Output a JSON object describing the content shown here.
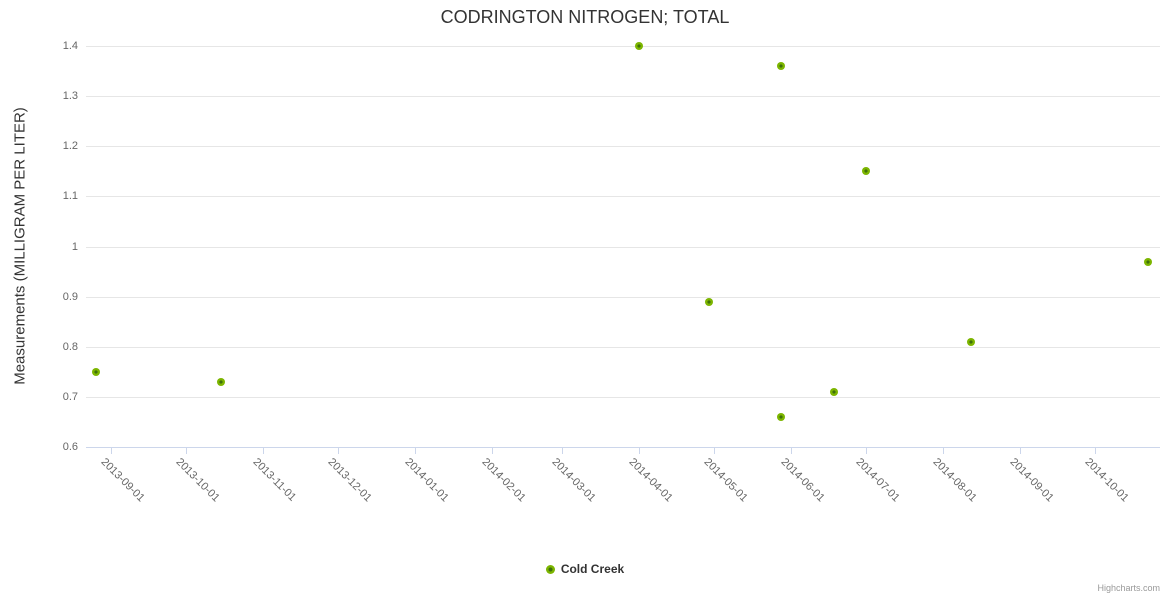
{
  "header": {
    "title": "CODRINGTON NITROGEN; TOTAL"
  },
  "y_axis": {
    "title": "Measurements (MILLIGRAM PER LITER)"
  },
  "legend": {
    "items": [
      {
        "label": "Cold Creek",
        "color": "#7CB500"
      }
    ]
  },
  "credits": {
    "label": "Highcharts.com"
  },
  "chart_data": {
    "type": "scatter",
    "title": "CODRINGTON NITROGEN; TOTAL",
    "xlabel": "",
    "ylabel": "Measurements (MILLIGRAM PER LITER)",
    "x_type": "datetime",
    "x_range": [
      "2013-08-22",
      "2014-10-27"
    ],
    "ylim": [
      0.6,
      1.4
    ],
    "y_ticks": [
      0.6,
      0.7,
      0.8,
      0.9,
      1,
      1.1,
      1.2,
      1.3,
      1.4
    ],
    "y_tick_labels": [
      "0.6",
      "0.7",
      "0.8",
      "0.9",
      "1",
      "1.1",
      "1.2",
      "1.3",
      "1.4"
    ],
    "x_ticks": [
      "2013-09-01",
      "2013-10-01",
      "2013-11-01",
      "2013-12-01",
      "2014-01-01",
      "2014-02-01",
      "2014-03-01",
      "2014-04-01",
      "2014-05-01",
      "2014-06-01",
      "2014-07-01",
      "2014-08-01",
      "2014-09-01",
      "2014-10-01"
    ],
    "grid": "horizontal",
    "legend_position": "bottom-center",
    "marker": {
      "outer_color": "#7CB500",
      "inner_color": "#3E700A"
    },
    "series": [
      {
        "name": "Cold Creek",
        "color": "#7CB500",
        "points": [
          {
            "x": "2013-08-26",
            "y": 0.75
          },
          {
            "x": "2013-10-15",
            "y": 0.73
          },
          {
            "x": "2014-04-01",
            "y": 1.4
          },
          {
            "x": "2014-04-29",
            "y": 0.89
          },
          {
            "x": "2014-05-28",
            "y": 1.36
          },
          {
            "x": "2014-05-28",
            "y": 0.66
          },
          {
            "x": "2014-06-18",
            "y": 0.71
          },
          {
            "x": "2014-07-01",
            "y": 1.15
          },
          {
            "x": "2014-08-12",
            "y": 0.81
          },
          {
            "x": "2014-10-22",
            "y": 0.97
          }
        ]
      }
    ]
  }
}
